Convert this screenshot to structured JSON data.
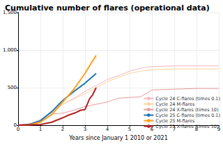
{
  "chart_data": {
    "type": "line",
    "title": "Cumulative number of flares (operational data)",
    "x_label": "Years since January 1 2010 or 2021",
    "xlim": [
      0,
      9
    ],
    "xticks": [
      0,
      1,
      2,
      3,
      4,
      5,
      6,
      7,
      8,
      9
    ],
    "ylim": [
      0,
      1500
    ],
    "yticks": [
      0,
      500,
      1000,
      1500
    ],
    "grid": true,
    "legend": "lower right",
    "series": [
      {
        "name": "Cycle 24 C-flares (times 0.1)",
        "color": "#f4b6c2",
        "x": [
          0,
          0.5,
          1,
          1.5,
          2,
          2.5,
          3,
          3.5,
          4,
          4.5,
          5,
          5.5,
          6,
          7,
          8,
          9
        ],
        "values": [
          0,
          15,
          80,
          170,
          280,
          360,
          450,
          530,
          610,
          660,
          720,
          760,
          780,
          790,
          790,
          790
        ]
      },
      {
        "name": "Cycle 24 M-flares",
        "color": "#fcd29a",
        "x": [
          0,
          0.5,
          1,
          1.5,
          2,
          2.5,
          3,
          3.5,
          4,
          4.5,
          5,
          5.5,
          6,
          7,
          8,
          9
        ],
        "values": [
          0,
          20,
          70,
          190,
          280,
          350,
          420,
          500,
          580,
          640,
          690,
          720,
          740,
          750,
          750,
          750
        ]
      },
      {
        "name": "Cycle 24 X-flares (times 10)",
        "color": "#e89a9a",
        "x": [
          0,
          1,
          1.5,
          2,
          2.5,
          3,
          3.5,
          4,
          4.5,
          5,
          5.5,
          6,
          7,
          8,
          9
        ],
        "values": [
          0,
          40,
          150,
          160,
          200,
          250,
          280,
          310,
          360,
          370,
          380,
          470,
          480,
          490,
          490
        ]
      },
      {
        "name": "Cycle 25 C-flares (times 0.1)",
        "color": "#1f77b4",
        "x": [
          0,
          0.5,
          1,
          1.5,
          2,
          2.5,
          3,
          3.5
        ],
        "values": [
          0,
          10,
          60,
          180,
          330,
          450,
          560,
          690
        ]
      },
      {
        "name": "Cycle 25 M-flares",
        "color": "#ff9f1c",
        "x": [
          0,
          0.5,
          1,
          1.5,
          2,
          2.5,
          3,
          3.2,
          3.5
        ],
        "values": [
          0,
          5,
          40,
          140,
          310,
          480,
          690,
          790,
          930
        ]
      },
      {
        "name": "Cycle 25 X-flares (times 10)",
        "color": "#b22222",
        "x": [
          0,
          1,
          1.5,
          2,
          2.3,
          2.6,
          2.8,
          3,
          3.2,
          3.35,
          3.5
        ],
        "values": [
          0,
          10,
          40,
          100,
          140,
          170,
          200,
          210,
          350,
          410,
          500
        ]
      }
    ]
  }
}
